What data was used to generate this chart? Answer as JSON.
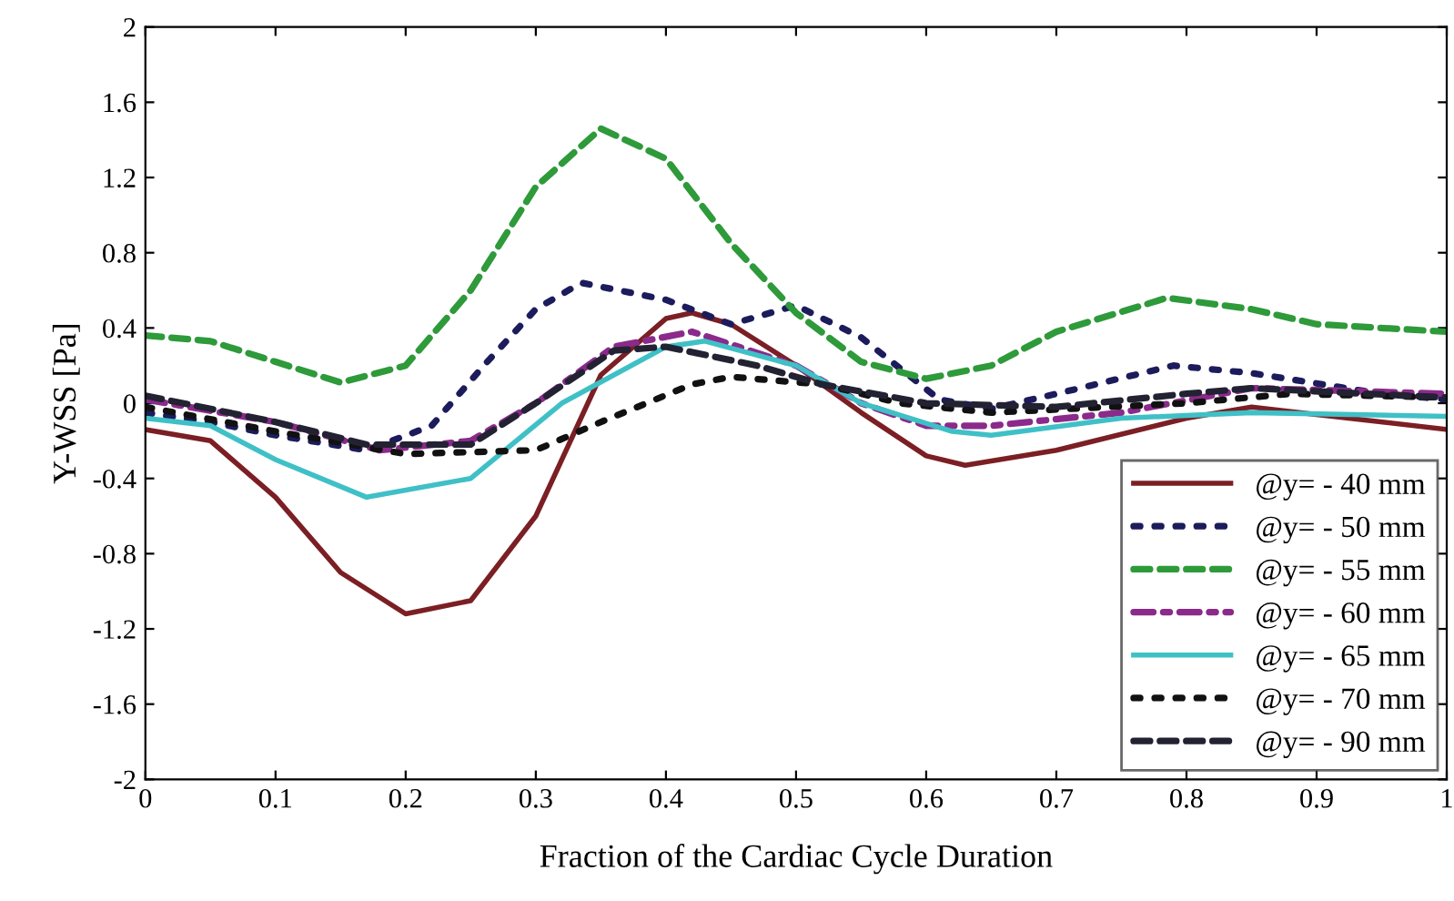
{
  "chart_data": {
    "type": "line",
    "xlabel": "Fraction of the Cardiac Cycle Duration",
    "ylabel": "Y-WSS [Pa]",
    "xlim": [
      0,
      1
    ],
    "xticks": [
      0,
      0.1,
      0.2,
      0.3,
      0.4,
      0.5,
      0.6,
      0.7,
      0.8,
      0.9,
      1
    ],
    "ylim": [
      -2,
      2
    ],
    "yticks": [
      -2,
      -1.6,
      -1.2,
      -0.8,
      -0.4,
      0,
      0.4,
      0.8,
      1.2,
      1.6,
      2
    ],
    "grid": false,
    "legend": "bottom right",
    "series": [
      {
        "name": "@y= - 40 mm",
        "color": "#7b1f24",
        "line_style": "solid",
        "x": [
          0,
          0.05,
          0.1,
          0.15,
          0.2,
          0.25,
          0.3,
          0.35,
          0.4,
          0.42,
          0.45,
          0.5,
          0.55,
          0.6,
          0.63,
          0.7,
          0.8,
          0.85,
          0.9,
          1
        ],
        "values": [
          -0.14,
          -0.2,
          -0.5,
          -0.9,
          -1.12,
          -1.05,
          -0.6,
          0.15,
          0.45,
          0.48,
          0.42,
          0.2,
          -0.05,
          -0.28,
          -0.33,
          -0.25,
          -0.08,
          -0.02,
          -0.06,
          -0.14
        ]
      },
      {
        "name": "@y= - 50 mm",
        "color": "#1c1c5c",
        "line_style": "dotted",
        "x": [
          0,
          0.05,
          0.1,
          0.17,
          0.22,
          0.26,
          0.3,
          0.335,
          0.4,
          0.45,
          0.5,
          0.55,
          0.61,
          0.65,
          0.7,
          0.79,
          0.85,
          0.95,
          1
        ],
        "values": [
          -0.05,
          -0.1,
          -0.17,
          -0.25,
          -0.12,
          0.2,
          0.5,
          0.64,
          0.55,
          0.42,
          0.52,
          0.35,
          0.02,
          -0.03,
          0.05,
          0.2,
          0.16,
          0.05,
          0.02
        ]
      },
      {
        "name": "@y= - 55 mm",
        "color": "#2e9a3a",
        "line_style": "dashed",
        "x": [
          0,
          0.05,
          0.1,
          0.15,
          0.2,
          0.25,
          0.3,
          0.35,
          0.4,
          0.45,
          0.5,
          0.55,
          0.6,
          0.65,
          0.7,
          0.785,
          0.85,
          0.9,
          1
        ],
        "values": [
          0.36,
          0.33,
          0.22,
          0.11,
          0.2,
          0.6,
          1.15,
          1.46,
          1.3,
          0.85,
          0.48,
          0.22,
          0.13,
          0.2,
          0.38,
          0.56,
          0.5,
          0.42,
          0.38
        ]
      },
      {
        "name": "@y= - 60 mm",
        "color": "#8b2a8b",
        "line_style": "dashdot",
        "x": [
          0,
          0.1,
          0.18,
          0.25,
          0.3,
          0.36,
          0.42,
          0.5,
          0.55,
          0.6,
          0.65,
          0.75,
          0.85,
          1
        ],
        "values": [
          0.02,
          -0.1,
          -0.25,
          -0.2,
          0.0,
          0.3,
          0.38,
          0.2,
          0.0,
          -0.12,
          -0.12,
          -0.05,
          0.08,
          0.05
        ]
      },
      {
        "name": "@y= - 65 mm",
        "color": "#3fc0c6",
        "line_style": "solid",
        "x": [
          0,
          0.05,
          0.1,
          0.17,
          0.25,
          0.32,
          0.4,
          0.43,
          0.5,
          0.55,
          0.62,
          0.65,
          0.75,
          0.85,
          1
        ],
        "values": [
          -0.08,
          -0.12,
          -0.3,
          -0.5,
          -0.4,
          0.0,
          0.3,
          0.33,
          0.2,
          0.0,
          -0.15,
          -0.17,
          -0.08,
          -0.05,
          -0.07
        ]
      },
      {
        "name": "@y= - 70 mm",
        "color": "#111111",
        "line_style": "dotted",
        "x": [
          0,
          0.1,
          0.2,
          0.3,
          0.35,
          0.42,
          0.45,
          0.52,
          0.58,
          0.65,
          0.8,
          0.88,
          1
        ],
        "values": [
          -0.02,
          -0.15,
          -0.27,
          -0.25,
          -0.1,
          0.1,
          0.14,
          0.1,
          0.0,
          -0.05,
          0.0,
          0.05,
          0.03
        ]
      },
      {
        "name": "@y= - 90 mm",
        "color": "#222233",
        "line_style": "dashed",
        "x": [
          0,
          0.1,
          0.17,
          0.25,
          0.3,
          0.36,
          0.4,
          0.47,
          0.52,
          0.6,
          0.7,
          0.8,
          0.85,
          1
        ],
        "values": [
          0.04,
          -0.1,
          -0.22,
          -0.22,
          0.0,
          0.28,
          0.3,
          0.2,
          0.1,
          0.0,
          -0.02,
          0.05,
          0.08,
          0.03
        ]
      }
    ]
  }
}
